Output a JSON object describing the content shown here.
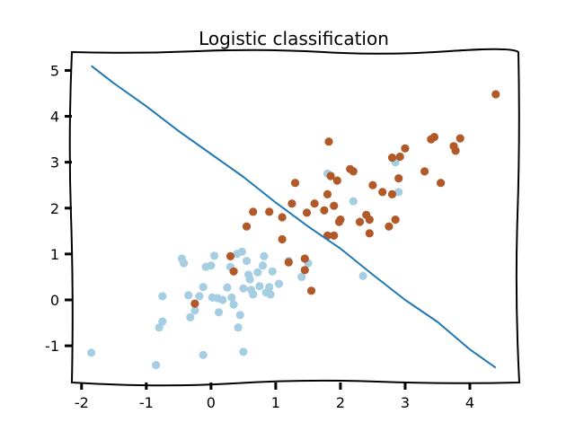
{
  "chart_data": {
    "type": "scatter",
    "title": "Logistic classification",
    "xlabel": "",
    "ylabel": "",
    "xlim": [
      -2.15,
      4.75
    ],
    "ylim": [
      -1.8,
      5.4
    ],
    "xticks": [
      -2,
      -1,
      0,
      1,
      2,
      3,
      4
    ],
    "yticks": [
      -1,
      0,
      1,
      2,
      3,
      4,
      5
    ],
    "grid": false,
    "legend": "none",
    "series": [
      {
        "class": 0,
        "color": "#a6cee3",
        "points": [
          [
            -1.85,
            -1.15
          ],
          [
            -0.85,
            -1.42
          ],
          [
            -0.75,
            0.08
          ],
          [
            -0.75,
            -0.47
          ],
          [
            -0.8,
            -0.6
          ],
          [
            -0.45,
            0.9
          ],
          [
            -0.42,
            0.8
          ],
          [
            -0.35,
            0.1
          ],
          [
            -0.32,
            -0.38
          ],
          [
            -0.25,
            -0.23
          ],
          [
            -0.18,
            0.08
          ],
          [
            -0.12,
            0.28
          ],
          [
            -0.12,
            -1.2
          ],
          [
            -0.08,
            0.72
          ],
          [
            0.0,
            0.75
          ],
          [
            0.05,
            0.96
          ],
          [
            0.02,
            0.05
          ],
          [
            0.1,
            0.04
          ],
          [
            0.12,
            -0.27
          ],
          [
            0.18,
            0.0
          ],
          [
            0.25,
            0.27
          ],
          [
            0.3,
            0.72
          ],
          [
            0.32,
            0.05
          ],
          [
            0.35,
            -0.1
          ],
          [
            0.4,
            1.0
          ],
          [
            0.42,
            -0.6
          ],
          [
            0.45,
            -0.33
          ],
          [
            0.48,
            1.05
          ],
          [
            0.5,
            0.25
          ],
          [
            0.5,
            -1.13
          ],
          [
            0.55,
            0.85
          ],
          [
            0.58,
            0.55
          ],
          [
            0.6,
            0.45
          ],
          [
            0.62,
            0.22
          ],
          [
            0.65,
            0.12
          ],
          [
            0.72,
            0.6
          ],
          [
            0.75,
            0.3
          ],
          [
            0.8,
            0.75
          ],
          [
            0.82,
            0.95
          ],
          [
            0.85,
            0.16
          ],
          [
            0.9,
            0.28
          ],
          [
            0.92,
            0.12
          ],
          [
            0.95,
            0.62
          ],
          [
            1.05,
            0.35
          ],
          [
            1.2,
            0.85
          ],
          [
            1.4,
            0.5
          ],
          [
            1.5,
            0.8
          ],
          [
            1.8,
            2.75
          ],
          [
            2.2,
            2.15
          ],
          [
            2.35,
            0.52
          ],
          [
            2.85,
            3.0
          ],
          [
            2.9,
            2.35
          ]
        ]
      },
      {
        "class": 1,
        "color": "#b15928",
        "points": [
          [
            -0.25,
            -0.08
          ],
          [
            0.3,
            0.95
          ],
          [
            0.35,
            0.62
          ],
          [
            0.55,
            1.6
          ],
          [
            0.65,
            1.92
          ],
          [
            0.9,
            1.92
          ],
          [
            1.1,
            1.8
          ],
          [
            1.1,
            1.32
          ],
          [
            1.2,
            0.82
          ],
          [
            1.25,
            2.1
          ],
          [
            1.3,
            2.55
          ],
          [
            1.45,
            0.65
          ],
          [
            1.45,
            0.9
          ],
          [
            1.48,
            1.9
          ],
          [
            1.55,
            0.2
          ],
          [
            1.6,
            2.1
          ],
          [
            1.75,
            1.95
          ],
          [
            1.8,
            1.4
          ],
          [
            1.8,
            2.3
          ],
          [
            1.82,
            3.45
          ],
          [
            1.85,
            2.7
          ],
          [
            1.9,
            2.05
          ],
          [
            1.9,
            1.4
          ],
          [
            1.95,
            2.6
          ],
          [
            1.98,
            1.7
          ],
          [
            2.0,
            1.75
          ],
          [
            2.15,
            2.85
          ],
          [
            2.2,
            2.8
          ],
          [
            2.3,
            1.7
          ],
          [
            2.4,
            1.85
          ],
          [
            2.45,
            1.75
          ],
          [
            2.45,
            1.45
          ],
          [
            2.5,
            2.5
          ],
          [
            2.65,
            2.35
          ],
          [
            2.75,
            1.6
          ],
          [
            2.8,
            3.1
          ],
          [
            2.8,
            2.3
          ],
          [
            2.85,
            1.75
          ],
          [
            2.9,
            2.65
          ],
          [
            2.92,
            3.12
          ],
          [
            3.0,
            3.3
          ],
          [
            3.3,
            2.8
          ],
          [
            3.4,
            3.5
          ],
          [
            3.45,
            3.55
          ],
          [
            3.55,
            2.55
          ],
          [
            3.75,
            3.35
          ],
          [
            3.78,
            3.25
          ],
          [
            3.85,
            3.52
          ],
          [
            4.4,
            4.48
          ]
        ]
      }
    ],
    "decision_boundary": {
      "color": "#1f77b4",
      "points": [
        [
          -1.85,
          5.1
        ],
        [
          -1.5,
          4.72
        ],
        [
          -1.0,
          4.22
        ],
        [
          -0.5,
          3.68
        ],
        [
          0.0,
          3.18
        ],
        [
          0.5,
          2.68
        ],
        [
          1.0,
          2.12
        ],
        [
          1.5,
          1.6
        ],
        [
          2.0,
          1.12
        ],
        [
          2.5,
          0.55
        ],
        [
          3.0,
          0.0
        ],
        [
          3.5,
          -0.48
        ],
        [
          4.0,
          -1.08
        ],
        [
          4.4,
          -1.48
        ]
      ]
    }
  }
}
